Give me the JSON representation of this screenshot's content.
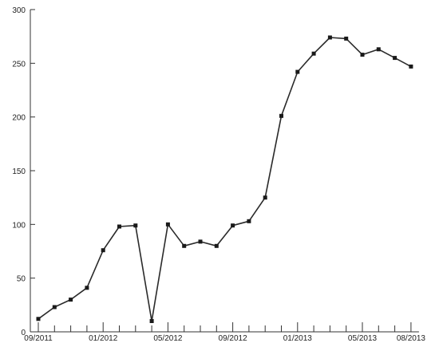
{
  "chart_data": {
    "type": "line",
    "title": "",
    "xlabel": "",
    "ylabel": "",
    "ylim": [
      0,
      300
    ],
    "yticks": [
      0,
      50,
      100,
      150,
      200,
      250,
      300
    ],
    "x_tick_labels": [
      "09/2011",
      "01/2012",
      "05/2012",
      "09/2012",
      "01/2013",
      "05/2013",
      "08/2013"
    ],
    "x_period_count": 24,
    "grid": false,
    "series": [
      {
        "x": [
          "09/2011",
          "10/2011",
          "11/2011",
          "12/2011",
          "01/2012",
          "02/2012",
          "03/2012",
          "04/2012",
          "05/2012",
          "06/2012",
          "07/2012",
          "08/2012",
          "09/2012",
          "10/2012",
          "11/2012",
          "12/2012",
          "01/2013",
          "02/2013",
          "03/2013",
          "04/2013",
          "05/2013",
          "06/2013",
          "07/2013",
          "08/2013"
        ],
        "values": [
          12,
          23,
          30,
          41,
          76,
          98,
          99,
          10,
          100,
          80,
          84,
          80,
          99,
          103,
          125,
          201,
          242,
          259,
          274,
          273,
          258,
          263,
          255,
          247
        ]
      }
    ]
  }
}
